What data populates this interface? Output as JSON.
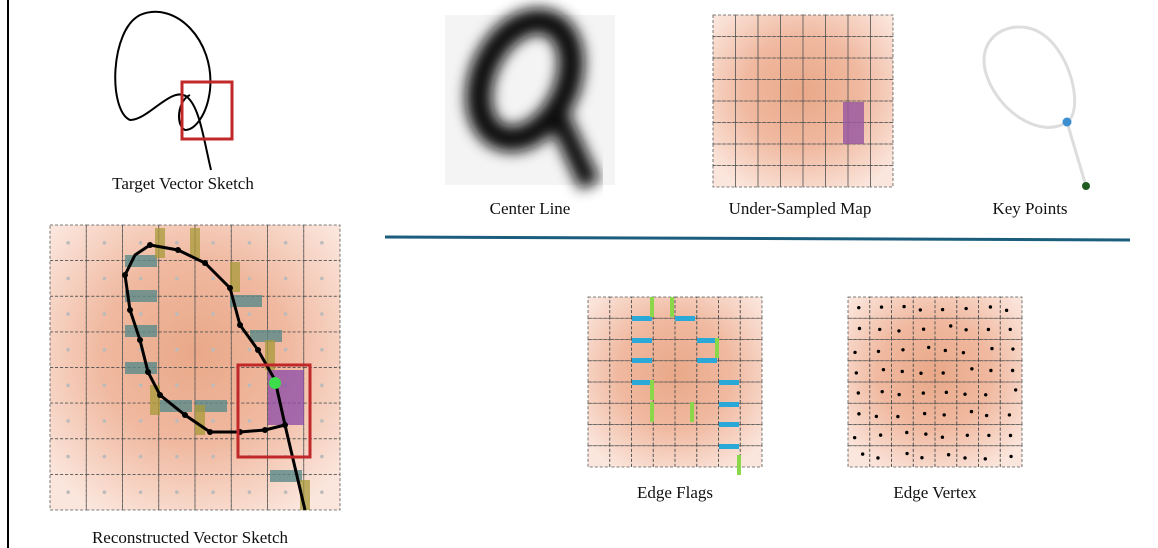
{
  "labels": {
    "target": "Target Vector Sketch",
    "center_line": "Center Line",
    "under_sampled": "Under-Sampled Map",
    "key_points": "Key Points",
    "reconstructed": "Reconstructed Vector Sketch",
    "edge_flags": "Edge Flags",
    "edge_vertex": "Edge Vertex"
  }
}
